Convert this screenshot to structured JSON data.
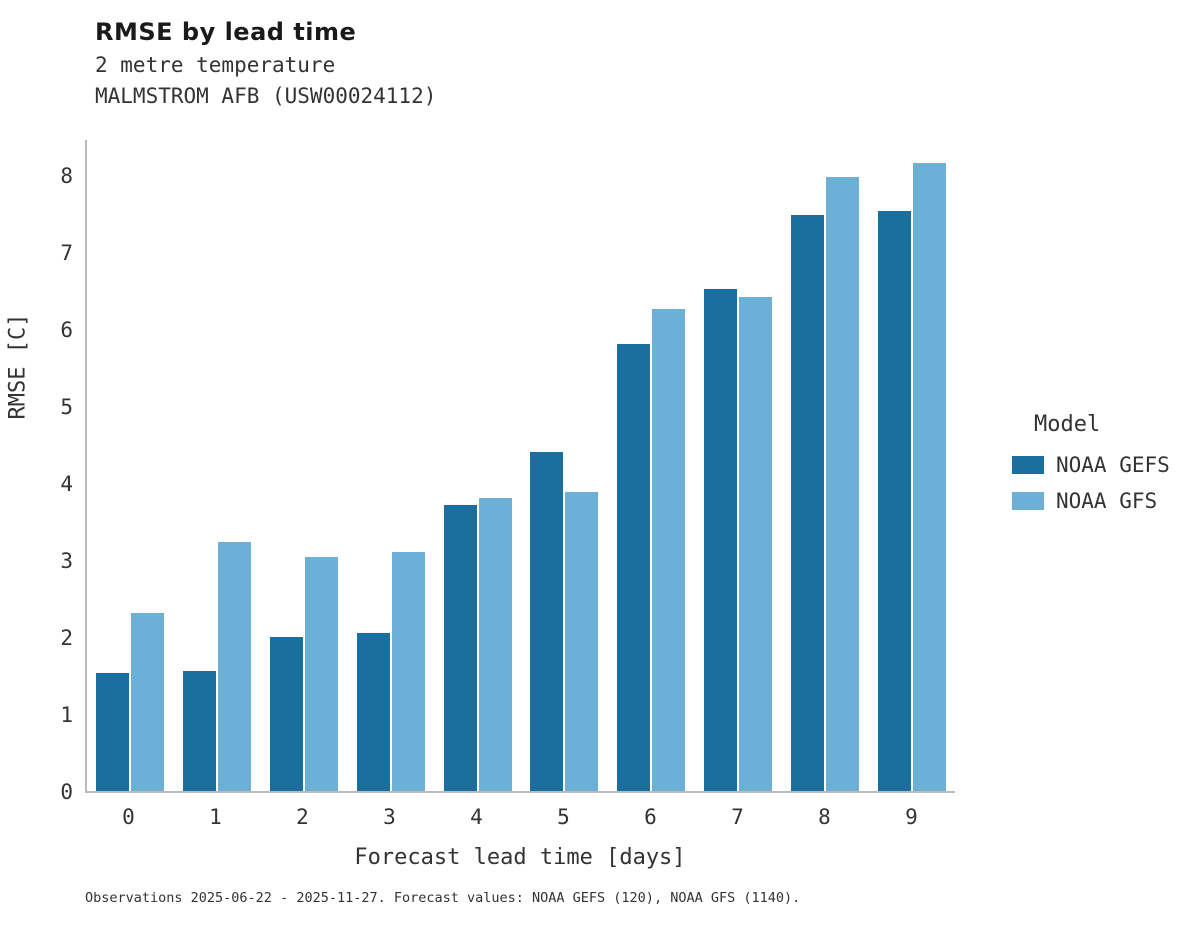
{
  "header": {
    "title": "RMSE by lead time",
    "subtitle1": "2 metre temperature",
    "subtitle2": "MALMSTROM AFB (USW00024112)"
  },
  "legend": {
    "title": "Model",
    "items": [
      {
        "label": "NOAA GEFS",
        "color": "#1b6f9e"
      },
      {
        "label": "NOAA GFS",
        "color": "#6cb0d8"
      }
    ]
  },
  "footer": {
    "text": "Observations 2025-06-22 - 2025-11-27. Forecast values: NOAA GEFS (120), NOAA GFS (1140)."
  },
  "chart_data": {
    "type": "bar",
    "title": "RMSE by lead time",
    "xlabel": "Forecast lead time [days]",
    "ylabel": "RMSE [C]",
    "categories": [
      "0",
      "1",
      "2",
      "3",
      "4",
      "5",
      "6",
      "7",
      "8",
      "9"
    ],
    "series": [
      {
        "name": "NOAA GEFS",
        "color": "#1b6f9e",
        "values": [
          1.53,
          1.56,
          2.0,
          2.05,
          3.72,
          4.4,
          5.81,
          6.52,
          7.48,
          7.53
        ]
      },
      {
        "name": "NOAA GFS",
        "color": "#6cb0d8",
        "values": [
          2.31,
          3.24,
          3.04,
          3.1,
          3.8,
          3.88,
          6.26,
          6.41,
          7.97,
          8.15
        ]
      }
    ],
    "yticks": [
      0,
      1,
      2,
      3,
      4,
      5,
      6,
      7,
      8
    ],
    "ylim": [
      0,
      8.48
    ],
    "grid": false,
    "legend_position": "right"
  }
}
